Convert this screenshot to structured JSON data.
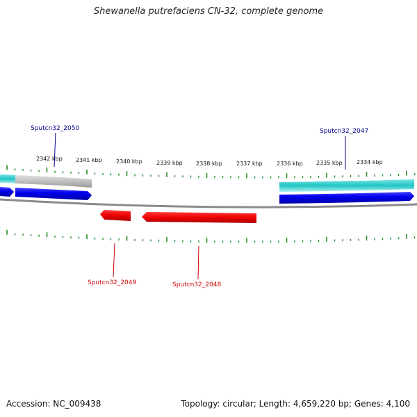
{
  "title": "Shewanella putrefaciens CN-32, complete genome",
  "footer": {
    "accession": "Accession: NC_009438",
    "topology": "Topology: circular; Length: 4,659,220 bp; Genes: 4,100"
  },
  "ticks": [
    "2342 kbp",
    "2341 kbp",
    "2340 kbp",
    "2339 kbp",
    "2338 kbp",
    "2337 kbp",
    "2336 kbp",
    "2335 kbp",
    "2334 kbp"
  ],
  "genes": [
    {
      "label": "Sputcn32_2050",
      "strand": "forward",
      "color": "#00008b"
    },
    {
      "label": "Sputcn32_2047",
      "strand": "forward",
      "color": "#00008b"
    },
    {
      "label": "Sputcn32_2049",
      "strand": "reverse",
      "color": "#cc0000"
    },
    {
      "label": "Sputcn32_2048",
      "strand": "reverse",
      "color": "#cc0000"
    }
  ],
  "colors": {
    "forward_cds": "#0000ee",
    "reverse_cds": "#ee0000",
    "cyan_feature": "#20c8c8",
    "grey_feature": "#b8b8b8",
    "backbone": "#808080",
    "tick": "#2a8a2a"
  }
}
